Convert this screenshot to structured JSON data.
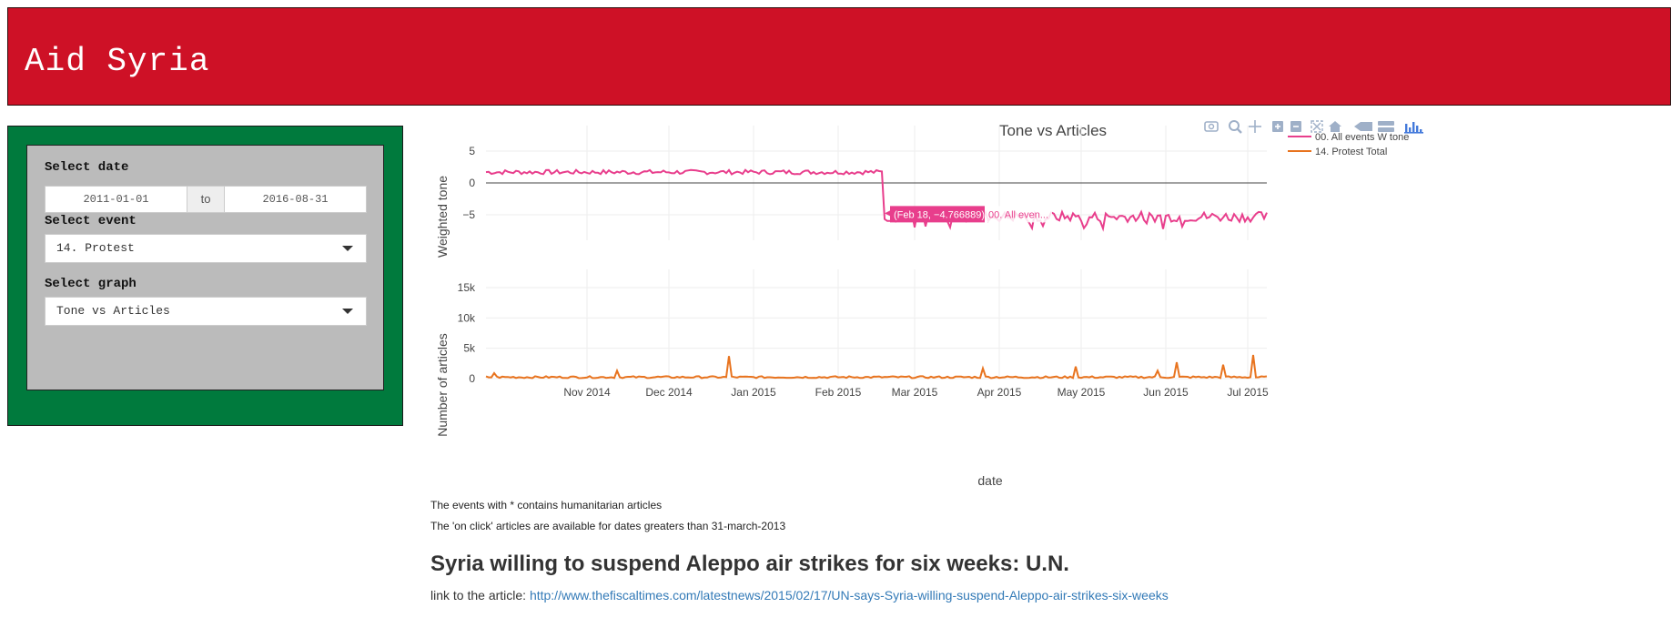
{
  "header": {
    "title": "Aid Syria",
    "bg_color": "#ce1126"
  },
  "sidebar": {
    "bg_color": "#007a3d",
    "date_label": "Select date",
    "date_from": "2011-01-01",
    "date_to_sep": "to",
    "date_to": "2016-08-31",
    "event_label": "Select event",
    "event_value": "14. Protest",
    "graph_label": "Select graph",
    "graph_value": "Tone vs Articles"
  },
  "toolbar": {
    "icons": [
      "camera-icon",
      "zoom-icon",
      "pan-icon",
      "zoom-in-icon",
      "zoom-out-icon",
      "autoscale-icon",
      "reset-axes-icon",
      "spike-lines-icon",
      "compare-hover-icon",
      "plotly-logo-icon"
    ]
  },
  "chart_data": {
    "type": "line",
    "title": "Tone vs Articles",
    "xlabel": "date",
    "x_range": [
      "2014-09-25",
      "2015-07-08"
    ],
    "x_ticks": [
      "Nov 2014",
      "Dec 2014",
      "Jan 2015",
      "Feb 2015",
      "Mar 2015",
      "Apr 2015",
      "May 2015",
      "Jun 2015",
      "Jul 2015"
    ],
    "x_tick_dates": [
      "2014-11-01",
      "2014-12-01",
      "2015-01-01",
      "2015-02-01",
      "2015-03-01",
      "2015-04-01",
      "2015-05-01",
      "2015-06-01",
      "2015-07-01"
    ],
    "subplots": [
      {
        "ylabel": "Weighted tone",
        "ylim": [
          -9,
          9
        ],
        "y_ticks": [
          "5",
          "0",
          "−5"
        ],
        "y_tick_values": [
          5,
          0,
          -5
        ],
        "zero_line": true,
        "series": [
          {
            "name": "00. All events W tone",
            "color": "#e83e8c",
            "segments": [
              {
                "start": "2014-09-25",
                "end": "2015-02-17",
                "mean": 1.7,
                "amplitude": 0.35
              },
              {
                "start": "2015-02-18",
                "end": "2015-07-08",
                "mean": -5.3,
                "amplitude": 0.8
              }
            ]
          }
        ]
      },
      {
        "ylabel": "Number of articles",
        "ylim": [
          0,
          18000
        ],
        "y_ticks": [
          "0",
          "5k",
          "10k",
          "15k"
        ],
        "y_tick_values": [
          0,
          5000,
          10000,
          15000
        ],
        "series": [
          {
            "name": "14. Protest  Total",
            "color": "#e8731e",
            "baseline": 200,
            "spikes": [
              {
                "date": "2014-09-28",
                "value": 900
              },
              {
                "date": "2014-11-12",
                "value": 1300
              },
              {
                "date": "2014-12-23",
                "value": 3700
              },
              {
                "date": "2015-03-26",
                "value": 1700
              },
              {
                "date": "2015-04-29",
                "value": 2000
              },
              {
                "date": "2015-05-29",
                "value": 1300
              },
              {
                "date": "2015-06-05",
                "value": 2700
              },
              {
                "date": "2015-06-22",
                "value": 2300
              },
              {
                "date": "2015-07-03",
                "value": 3900
              }
            ]
          }
        ]
      }
    ],
    "legend_position": "top-right",
    "hover": {
      "date": "2015-02-18",
      "value": -4.766889,
      "label": "(Feb 18, −4.766889)",
      "series_label": "00. All even..."
    }
  },
  "notes": [
    "The events with * contains humanitarian articles",
    "The 'on click' articles are available for dates greaters than 31-march-2013"
  ],
  "article": {
    "headline": "Syria willing to suspend Aleppo air strikes for six weeks: U.N.",
    "link_prefix": "link to the article: ",
    "url": "http://www.thefiscaltimes.com/latestnews/2015/02/17/UN-says-Syria-willing-suspend-Aleppo-air-strikes-six-weeks"
  }
}
